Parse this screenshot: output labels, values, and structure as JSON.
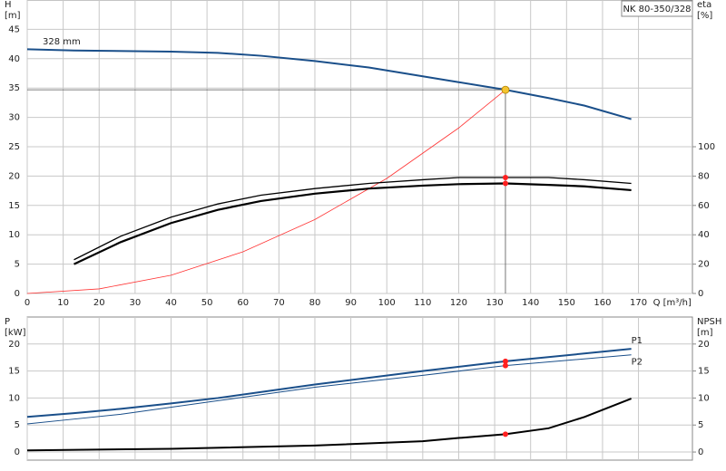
{
  "chart_data": [
    {
      "type": "line",
      "title": "NK 80-350/328",
      "annotation": "328 mm",
      "ylabel": [
        "H",
        "[m]"
      ],
      "y2label": [
        "eta",
        "[%]"
      ],
      "xlabel": "Q [m³/h]",
      "xlim": [
        0,
        185
      ],
      "xticks": [
        0,
        10,
        20,
        30,
        40,
        50,
        60,
        70,
        80,
        90,
        100,
        110,
        120,
        130,
        140,
        150,
        160,
        170
      ],
      "xtick_labels": true,
      "ylim": [
        0,
        50
      ],
      "yticks": [
        0,
        5,
        10,
        15,
        20,
        25,
        30,
        35,
        40,
        45
      ],
      "y2lim": [
        0,
        200
      ],
      "y2ticks": [
        0,
        20,
        40,
        60,
        80,
        100
      ],
      "grid": true,
      "guide_lines": true,
      "series": [
        {
          "color": "#1a4f8a",
          "width": 2,
          "x": [
            0,
            13,
            40,
            53,
            65,
            80,
            95,
            110,
            120,
            133,
            145,
            155,
            168
          ],
          "values": [
            41.6,
            41.4,
            41.2,
            41.0,
            40.5,
            39.6,
            38.5,
            37.0,
            36.0,
            34.7,
            33.3,
            32.0,
            29.7
          ],
          "marker": {
            "x": 133,
            "y": 34.7,
            "color": "#f4c430"
          }
        },
        {
          "color": "#ff3333",
          "width": 0.8,
          "x": [
            0,
            20,
            40,
            60,
            80,
            100,
            120,
            133
          ],
          "values": [
            0,
            0.78,
            3.1,
            7.1,
            12.6,
            19.6,
            28.2,
            34.7
          ]
        },
        {
          "color": "#000000",
          "width": 1.3,
          "axis": "y2",
          "x": [
            13,
            26,
            40,
            53,
            65,
            80,
            95,
            110,
            120,
            133,
            145,
            155,
            168
          ],
          "values": [
            23,
            39,
            52,
            61,
            67,
            71.5,
            75,
            77.5,
            79,
            79,
            79,
            77.5,
            75
          ],
          "marker": {
            "x": 133,
            "y": 79,
            "color": "#ff2020"
          }
        },
        {
          "color": "#000000",
          "width": 2.2,
          "axis": "y2",
          "x": [
            13,
            26,
            40,
            53,
            65,
            80,
            95,
            110,
            120,
            133,
            145,
            155,
            168
          ],
          "values": [
            20,
            35,
            48,
            57,
            63,
            68,
            71.5,
            73.5,
            74.5,
            75,
            74,
            73,
            70.4
          ],
          "marker": {
            "x": 133,
            "y": 75,
            "color": "#ff2020"
          }
        }
      ]
    },
    {
      "type": "line",
      "ylabel": [
        "P",
        "[kW]"
      ],
      "y2label": [
        "NPSH",
        "[m]"
      ],
      "xlim": [
        0,
        185
      ],
      "xticks": [
        0,
        10,
        20,
        30,
        40,
        50,
        60,
        70,
        80,
        90,
        100,
        110,
        120,
        130,
        140,
        150,
        160,
        170
      ],
      "xtick_labels": false,
      "ylim": [
        -1.5,
        25
      ],
      "yticks": [
        0,
        5,
        10,
        15,
        20
      ],
      "y2lim": [
        -1.5,
        25
      ],
      "y2ticks": [
        0,
        5,
        10,
        15,
        20
      ],
      "grid": true,
      "series": [
        {
          "name": "P1",
          "color": "#1a4f8a",
          "width": 2,
          "x": [
            0,
            13,
            26,
            40,
            53,
            80,
            110,
            133,
            168
          ],
          "values": [
            6.5,
            7.2,
            8.0,
            9.0,
            10.0,
            12.5,
            15.0,
            16.8,
            19.1
          ],
          "marker": {
            "x": 133,
            "y": 16.8,
            "color": "#ff2020"
          }
        },
        {
          "name": "P2",
          "color": "#1a4f8a",
          "width": 1,
          "x": [
            0,
            13,
            26,
            53,
            80,
            110,
            133,
            168
          ],
          "values": [
            5.2,
            6.1,
            7.0,
            9.5,
            12.0,
            14.2,
            16.0,
            18.0
          ],
          "marker": {
            "x": 133,
            "y": 16.0,
            "color": "#ff2020"
          }
        },
        {
          "color": "#000000",
          "width": 2,
          "axis": "y2",
          "x": [
            0,
            40,
            80,
            110,
            120,
            133,
            145,
            155,
            168
          ],
          "values": [
            0.3,
            0.6,
            1.2,
            2.0,
            2.6,
            3.3,
            4.4,
            6.5,
            9.9
          ],
          "marker": {
            "x": 133,
            "y": 3.3,
            "color": "#ff2020"
          }
        }
      ]
    }
  ]
}
